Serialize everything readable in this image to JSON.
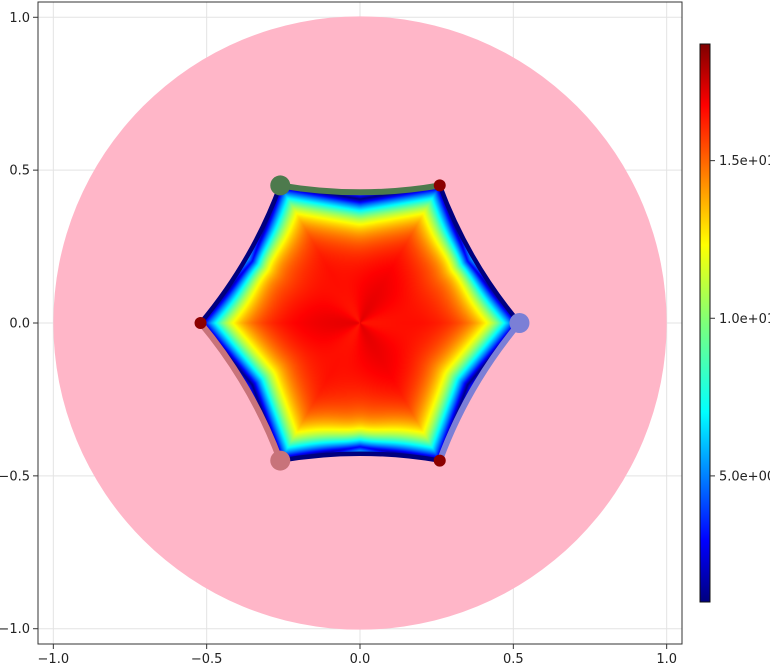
{
  "chart_data": {
    "type": "heatmap",
    "title": "",
    "xlabel": "",
    "ylabel": "",
    "xlim": [
      -1.05,
      1.05
    ],
    "ylim": [
      -1.05,
      1.05
    ],
    "grid": true,
    "xticks": [
      {
        "value": -1.0,
        "label": "−1.0"
      },
      {
        "value": -0.5,
        "label": "−0.5"
      },
      {
        "value": 0.0,
        "label": "0.0"
      },
      {
        "value": 0.5,
        "label": "0.5"
      },
      {
        "value": 1.0,
        "label": "1.0"
      }
    ],
    "yticks": [
      {
        "value": -1.0,
        "label": "−1.0"
      },
      {
        "value": -0.5,
        "label": "−0.5"
      },
      {
        "value": 0.0,
        "label": "0.0"
      },
      {
        "value": 0.5,
        "label": "0.5"
      },
      {
        "value": 1.0,
        "label": "1.0"
      }
    ],
    "disk": {
      "center": [
        0,
        0
      ],
      "radius": 1.0,
      "color": "#ffb6c8"
    },
    "vertices": [
      {
        "x": 0.52,
        "y": 0.0,
        "color": "#7b7fd6",
        "size": "large"
      },
      {
        "x": 0.26,
        "y": 0.45,
        "color": "#8b0000",
        "size": "small"
      },
      {
        "x": -0.26,
        "y": 0.45,
        "color": "#4d7a4d",
        "size": "large"
      },
      {
        "x": -0.52,
        "y": 0.0,
        "color": "#8b0000",
        "size": "small"
      },
      {
        "x": -0.26,
        "y": -0.45,
        "color": "#c8737a",
        "size": "large"
      },
      {
        "x": 0.26,
        "y": -0.45,
        "color": "#8b0000",
        "size": "small"
      }
    ],
    "boundary_color": "#00007f",
    "highlighted_edges": [
      {
        "from": 2,
        "to": 1,
        "color": "#4d7a4d"
      },
      {
        "from": 3,
        "to": 4,
        "color": "#c8737a"
      },
      {
        "from": 5,
        "to": 0,
        "color": "#7b7fd6"
      }
    ],
    "colorbar": {
      "colormap": "jet",
      "min": 1.0,
      "max": 18.7,
      "ticks": [
        {
          "value": 5.0,
          "label": "5.0e+00"
        },
        {
          "value": 10.0,
          "label": "1.0e+01"
        },
        {
          "value": 15.0,
          "label": "1.5e+01"
        }
      ]
    }
  }
}
